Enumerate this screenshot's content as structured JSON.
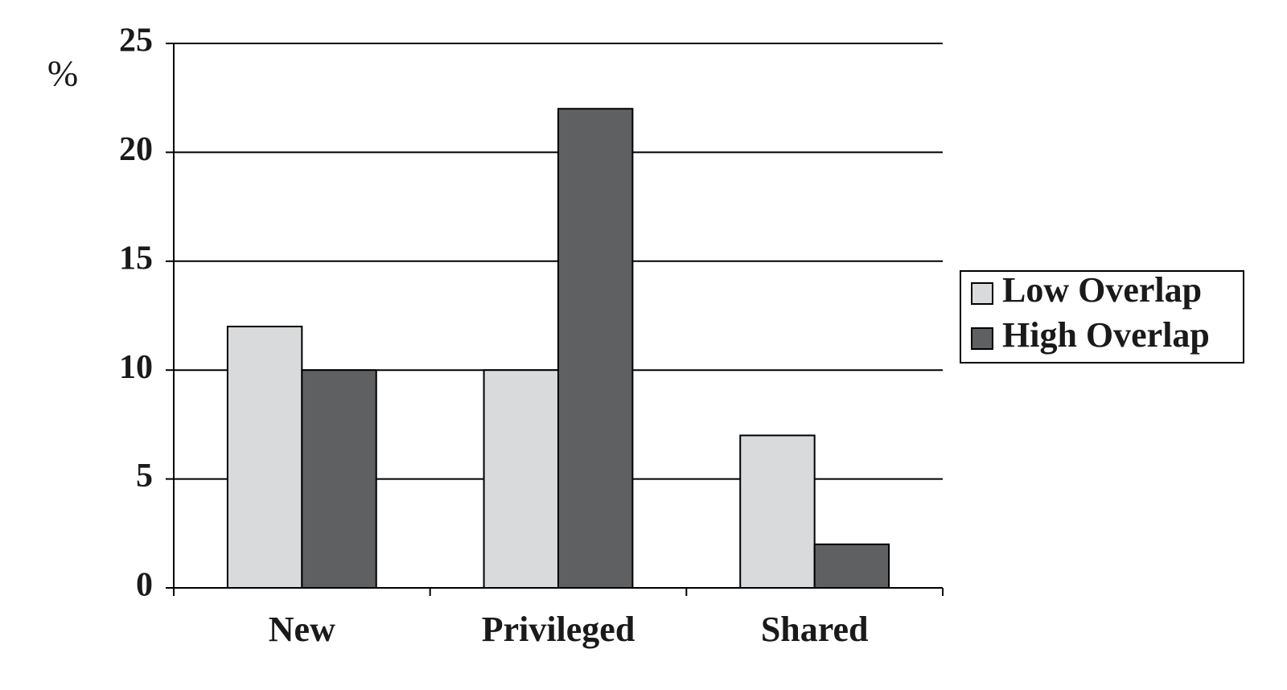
{
  "chart_data": {
    "type": "bar",
    "y_label": "%",
    "categories": [
      "New",
      "Privileged",
      "Shared"
    ],
    "series": [
      {
        "name": "Low Overlap",
        "color": "#d9dadc",
        "values": [
          12,
          10,
          7
        ]
      },
      {
        "name": "High Overlap",
        "color": "#5f6062",
        "values": [
          10,
          22,
          2
        ]
      }
    ],
    "ylim": [
      0,
      25
    ],
    "yticks": [
      0,
      5,
      10,
      15,
      20,
      25
    ],
    "grid": true,
    "legend": "right"
  }
}
